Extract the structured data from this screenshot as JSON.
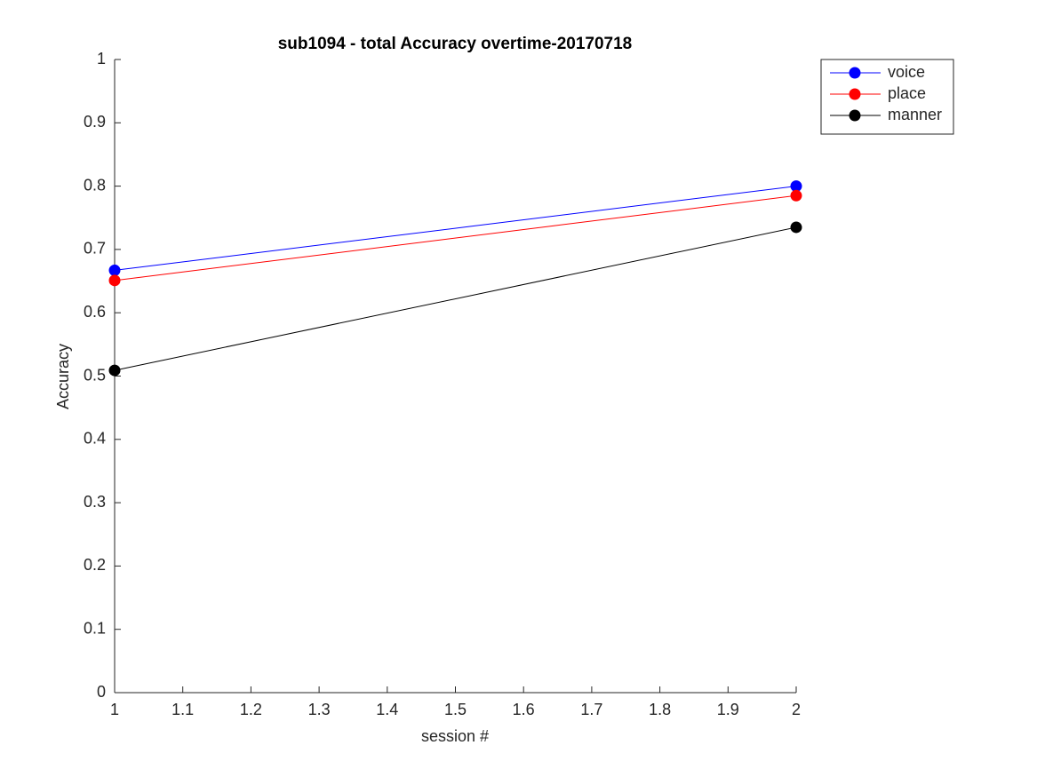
{
  "chart_data": {
    "type": "line",
    "title": "sub1094 - total Accuracy overtime-20170718",
    "xlabel": "session #",
    "ylabel": "Accuracy",
    "x": [
      1,
      2
    ],
    "series": [
      {
        "name": "voice",
        "color": "#0000ff",
        "values": [
          0.667,
          0.8
        ]
      },
      {
        "name": "place",
        "color": "#ff0000",
        "values": [
          0.651,
          0.785
        ]
      },
      {
        "name": "manner",
        "color": "#000000",
        "values": [
          0.509,
          0.735
        ]
      }
    ],
    "xlim": [
      1,
      2
    ],
    "xticks": [
      1,
      1.1,
      1.2,
      1.3,
      1.4,
      1.5,
      1.6,
      1.7,
      1.8,
      1.9,
      2
    ],
    "ylim": [
      0,
      1
    ],
    "yticks": [
      0,
      0.1,
      0.2,
      0.3,
      0.4,
      0.5,
      0.6,
      0.7,
      0.8,
      0.9,
      1
    ],
    "grid": false,
    "legend": "top-right"
  }
}
